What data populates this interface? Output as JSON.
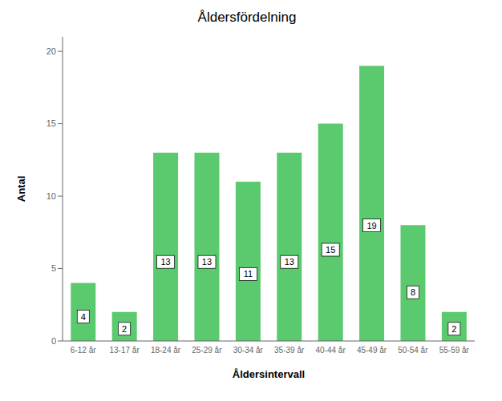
{
  "chart_data": {
    "type": "bar",
    "title": "Åldersfördelning",
    "xlabel": "Åldersintervall",
    "ylabel": "Antal",
    "categories": [
      "6-12 år",
      "13-17 år",
      "18-24 år",
      "25-29 år",
      "30-34 år",
      "35-39 år",
      "40-44 år",
      "45-49 år",
      "50-54 år",
      "55-59 år"
    ],
    "values": [
      4,
      2,
      13,
      13,
      11,
      13,
      15,
      19,
      8,
      2
    ],
    "color": "#5bc96e",
    "ylim": [
      0,
      21
    ],
    "yticks": [
      0,
      5,
      10,
      15,
      20
    ],
    "grid": false,
    "data_labels": true
  }
}
